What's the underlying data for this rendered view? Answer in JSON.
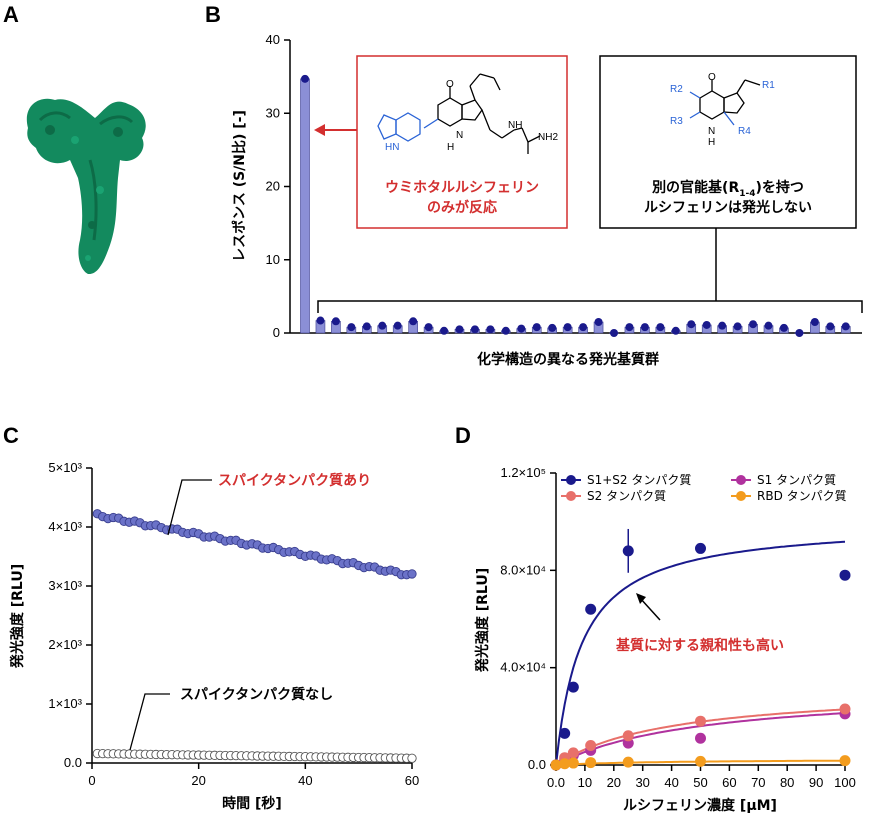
{
  "panels": {
    "a": "A",
    "b": "B",
    "c": "C",
    "d": "D"
  },
  "chart_data": [
    {
      "id": "B",
      "type": "bar",
      "ylabel": "レスポンス (S/N比) [-]",
      "xlabel": "化学構造の異なる発光基質群",
      "ylim": [
        0,
        40
      ],
      "yticks": [
        "0",
        "10",
        "20",
        "30",
        "40"
      ],
      "values": [
        34.7,
        1.7,
        1.6,
        0.8,
        0.9,
        1.0,
        1.0,
        1.6,
        0.8,
        0.3,
        0.5,
        0.5,
        0.5,
        0.3,
        0.6,
        0.8,
        0.7,
        0.8,
        0.8,
        1.5,
        0.0,
        0.8,
        0.8,
        0.8,
        0.3,
        1.2,
        1.1,
        1.0,
        0.9,
        1.2,
        1.0,
        0.7,
        0.0,
        1.5,
        0.9,
        0.9
      ],
      "callout_red": {
        "line1": "ウミホタルルシフェリン",
        "line2": "のみが反応"
      },
      "callout_black": {
        "line1": "別の官能基(R",
        "sub": "1-4",
        "line1_end": ")を持つ",
        "line2": "ルシフェリンは発光しない"
      },
      "chem_labels": {
        "o": "O",
        "n": "N",
        "nh": "NH",
        "h": "H",
        "hn": "HN",
        "nh2": "NH2",
        "r1": "R1",
        "r2": "R2",
        "r3": "R3",
        "r4": "R4"
      }
    },
    {
      "id": "C",
      "type": "scatter",
      "xlabel": "時間 [秒]",
      "ylabel": "発光強度 [RLU]",
      "xlim": [
        0,
        60
      ],
      "ylim": [
        0,
        5000
      ],
      "xticks": [
        "0",
        "20",
        "40",
        "60"
      ],
      "yticks": [
        "0.0",
        "1×10³",
        "2×10³",
        "3×10³",
        "4×10³",
        "5×10³"
      ],
      "series": [
        {
          "name": "スパイクタンパク質あり",
          "start": 4200,
          "end": 3180,
          "color": "#6b72c8"
        },
        {
          "name": "スパイクタンパク質なし",
          "start": 160,
          "end": 80,
          "color": "#ffffff"
        }
      ]
    },
    {
      "id": "D",
      "type": "scatter",
      "xlabel": "ルシフェリン濃度 [μM]",
      "ylabel": "発光強度 [RLU]",
      "xlim": [
        0,
        100
      ],
      "ylim": [
        0,
        120000
      ],
      "xticks": [
        "0.0",
        "10",
        "20",
        "30",
        "40",
        "50",
        "60",
        "70",
        "80",
        "90",
        "100"
      ],
      "yticks": [
        "0.0",
        "4.0×10⁴",
        "8.0×10⁴",
        "1.2×10⁵"
      ],
      "annotation": "基質に対する親和性も高い",
      "series": [
        {
          "name": "S1+S2 タンパク質",
          "color": "#1a1a8c",
          "x": [
            0,
            3,
            6,
            12,
            25,
            50,
            100
          ],
          "y": [
            0,
            13000,
            32000,
            64000,
            88000,
            89000,
            78000
          ],
          "fit": {
            "vmax": 100000,
            "km": 9
          }
        },
        {
          "name": "S1 タンパク質",
          "color": "#b0329e",
          "x": [
            0,
            3,
            6,
            12,
            25,
            50,
            100
          ],
          "y": [
            0,
            2000,
            4000,
            6000,
            9000,
            11000,
            21000
          ],
          "fit": {
            "vmax": 32000,
            "km": 50
          }
        },
        {
          "name": "S2 タンパク質",
          "color": "#e8706a",
          "x": [
            0,
            3,
            6,
            12,
            25,
            50,
            100
          ],
          "y": [
            0,
            3000,
            5000,
            8000,
            12000,
            18000,
            23000
          ],
          "fit": {
            "vmax": 32000,
            "km": 40
          }
        },
        {
          "name": "RBD タンパク質",
          "color": "#f39c1e",
          "x": [
            0,
            3,
            6,
            12,
            25,
            50,
            100
          ],
          "y": [
            0,
            500,
            800,
            1000,
            1200,
            1500,
            1800
          ],
          "fit": {
            "vmax": 2500,
            "km": 40
          }
        }
      ]
    }
  ]
}
